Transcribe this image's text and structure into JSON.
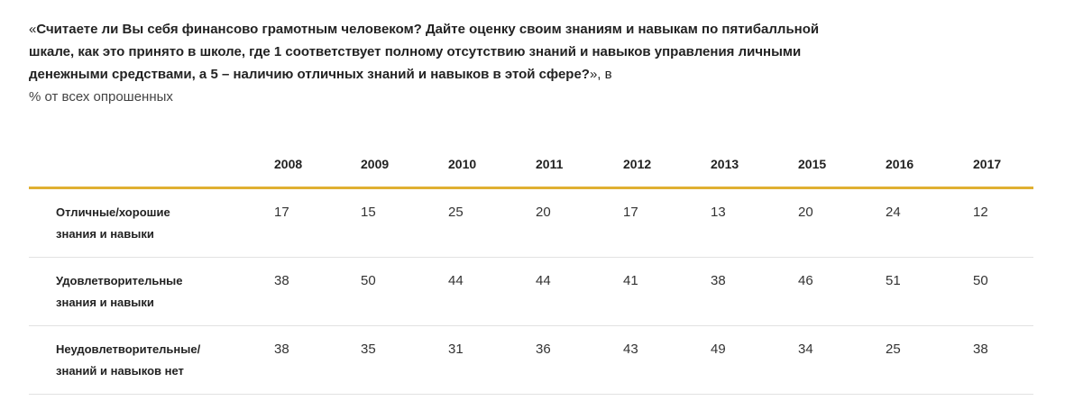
{
  "title": {
    "open_quote": "«",
    "question": "Считаете ли Вы себя финансово грамотным человеком? Дайте оценку своим знаниям и навыкам по пятибалльной шкале, как это принято в школе, где 1 соответствует полному отсутствию знаний и навыков управления личными денежными средствами, а 5 – наличию отличных знаний и навыков в этой сфере?",
    "close_quote": "», в",
    "unit": "% от всех опрошенных"
  },
  "table": {
    "years": [
      "2008",
      "2009",
      "2010",
      "2011",
      "2012",
      "2013",
      "2015",
      "2016",
      "2017"
    ],
    "rows": [
      {
        "label_line1": "Отличные/хорошие",
        "label_line2": "знания и навыки",
        "values": [
          "17",
          "15",
          "25",
          "20",
          "17",
          "13",
          "20",
          "24",
          "12"
        ]
      },
      {
        "label_line1": "Удовлетворительные",
        "label_line2": "знания и навыки",
        "values": [
          "38",
          "50",
          "44",
          "44",
          "41",
          "38",
          "46",
          "51",
          "50"
        ]
      },
      {
        "label_line1": "Неудовлетворительные/",
        "label_line2": "знаний и навыков нет",
        "values": [
          "38",
          "35",
          "31",
          "36",
          "43",
          "49",
          "34",
          "25",
          "38"
        ]
      }
    ]
  },
  "colors": {
    "accent": "#e0b032",
    "divider": "#e2e2e2"
  }
}
